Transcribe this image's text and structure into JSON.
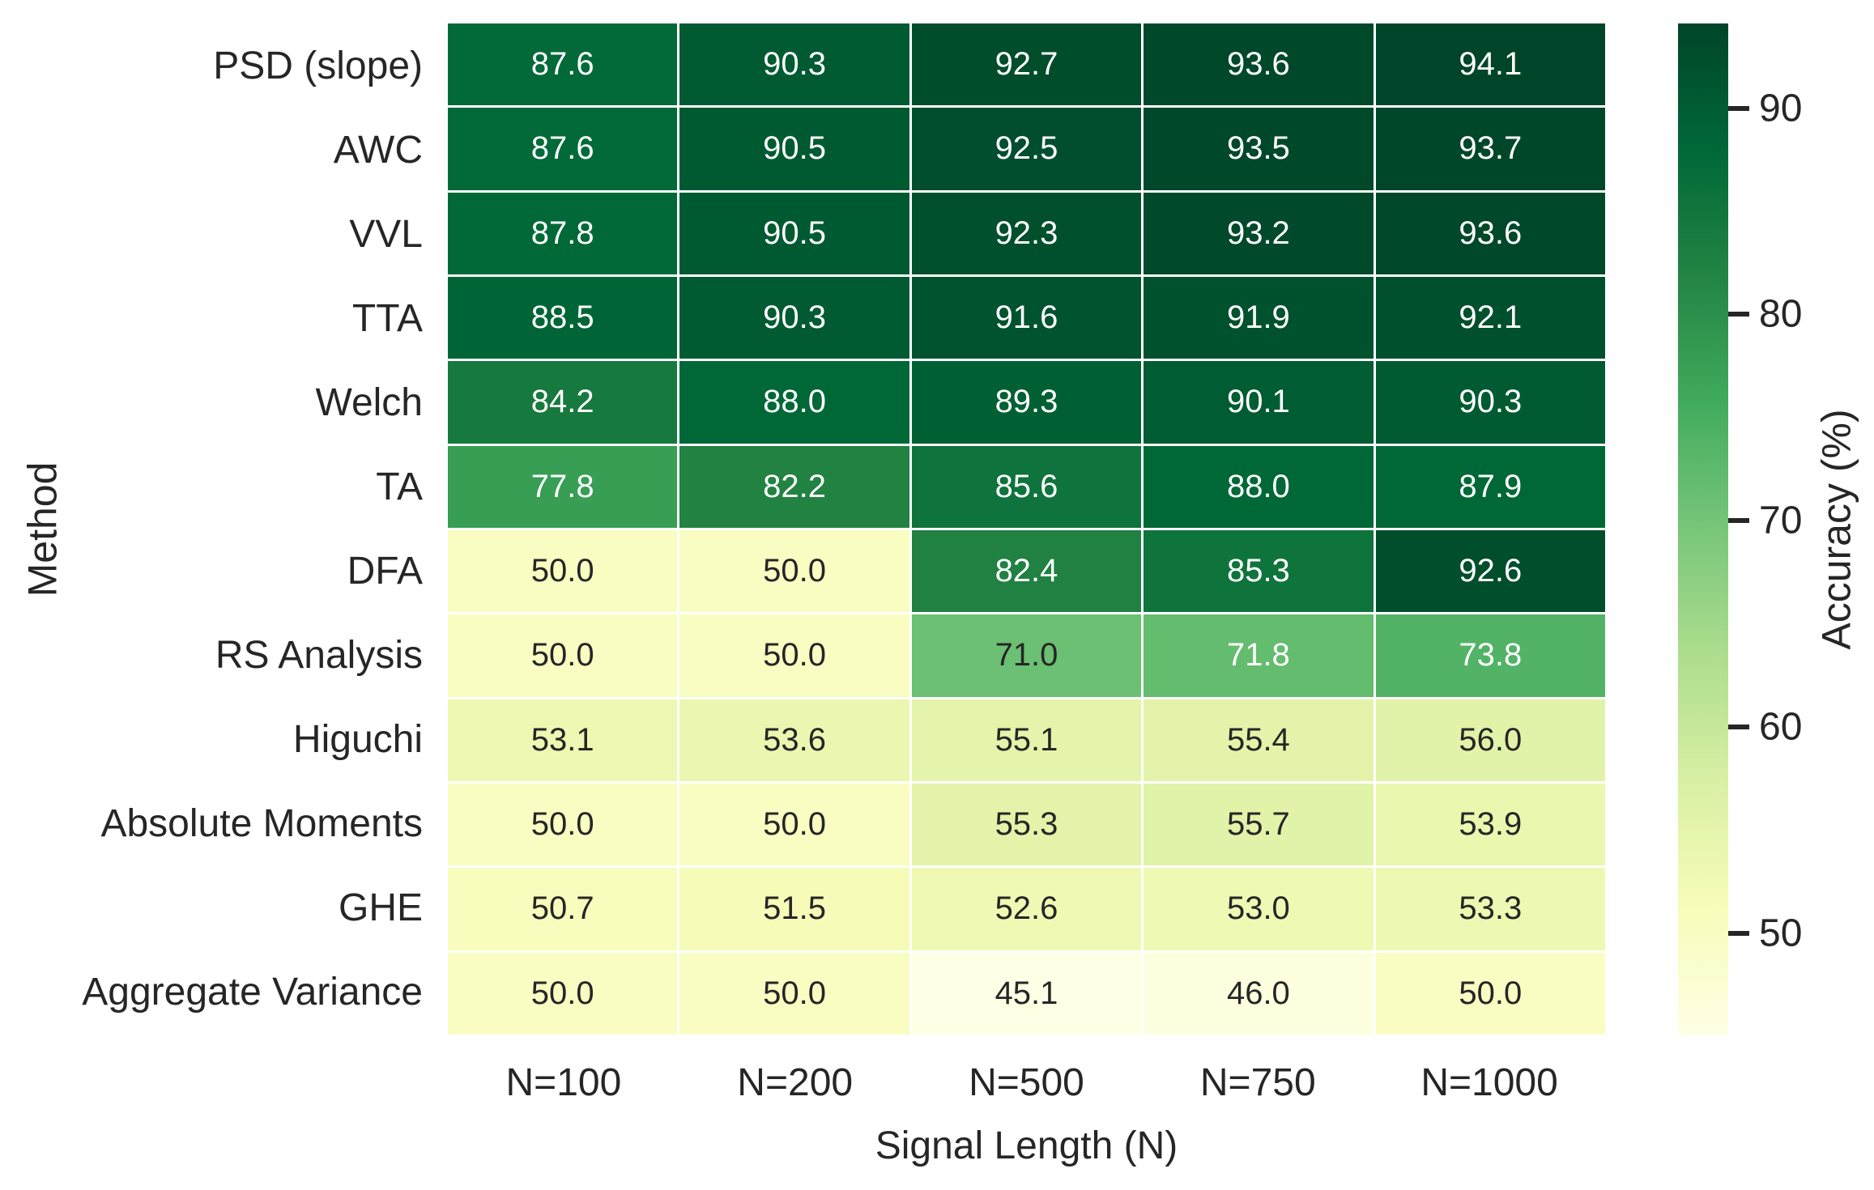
{
  "figure": {
    "background": "#ffffff",
    "text_color": "#262626"
  },
  "chart_data": {
    "type": "heatmap",
    "title": "",
    "xlabel": "Signal Length (N)",
    "ylabel": "Method",
    "x_tick_labels": [
      "N=100",
      "N=200",
      "N=500",
      "N=750",
      "N=1000"
    ],
    "y_tick_labels": [
      "PSD (slope)",
      "AWC",
      "VVL",
      "TTA",
      "Welch",
      "TA",
      "DFA",
      "RS Analysis",
      "Higuchi",
      "Absolute Moments",
      "GHE",
      "Aggregate Variance"
    ],
    "values": [
      [
        87.6,
        90.3,
        92.7,
        93.6,
        94.1
      ],
      [
        87.6,
        90.5,
        92.5,
        93.5,
        93.7
      ],
      [
        87.8,
        90.5,
        92.3,
        93.2,
        93.6
      ],
      [
        88.5,
        90.3,
        91.6,
        91.9,
        92.1
      ],
      [
        84.2,
        88.0,
        89.3,
        90.1,
        90.3
      ],
      [
        77.8,
        82.2,
        85.6,
        88.0,
        87.9
      ],
      [
        50.0,
        50.0,
        82.4,
        85.3,
        92.6
      ],
      [
        50.0,
        50.0,
        71.0,
        71.8,
        73.8
      ],
      [
        53.1,
        53.6,
        55.1,
        55.4,
        56.0
      ],
      [
        50.0,
        50.0,
        55.3,
        55.7,
        53.9
      ],
      [
        50.7,
        51.5,
        52.6,
        53.0,
        53.3
      ],
      [
        50.0,
        50.0,
        45.1,
        46.0,
        50.0
      ]
    ],
    "annotation_decimals": 1,
    "annotation_text_light": "#ffffff",
    "annotation_text_dark": "#262626",
    "grid_line_color": "#ffffff",
    "grid_on": false,
    "legend": "none",
    "colorbar": {
      "label": "Accuracy (%)",
      "tick_values": [
        50,
        60,
        70,
        80,
        90
      ],
      "vmin": 45.1,
      "vmax": 94.1,
      "colormap": "YlGn",
      "colormap_anchors": [
        "#ffffe5",
        "#f7fcb9",
        "#d9f0a3",
        "#addd8e",
        "#78c679",
        "#41ab5d",
        "#238443",
        "#006837",
        "#004529"
      ]
    }
  }
}
